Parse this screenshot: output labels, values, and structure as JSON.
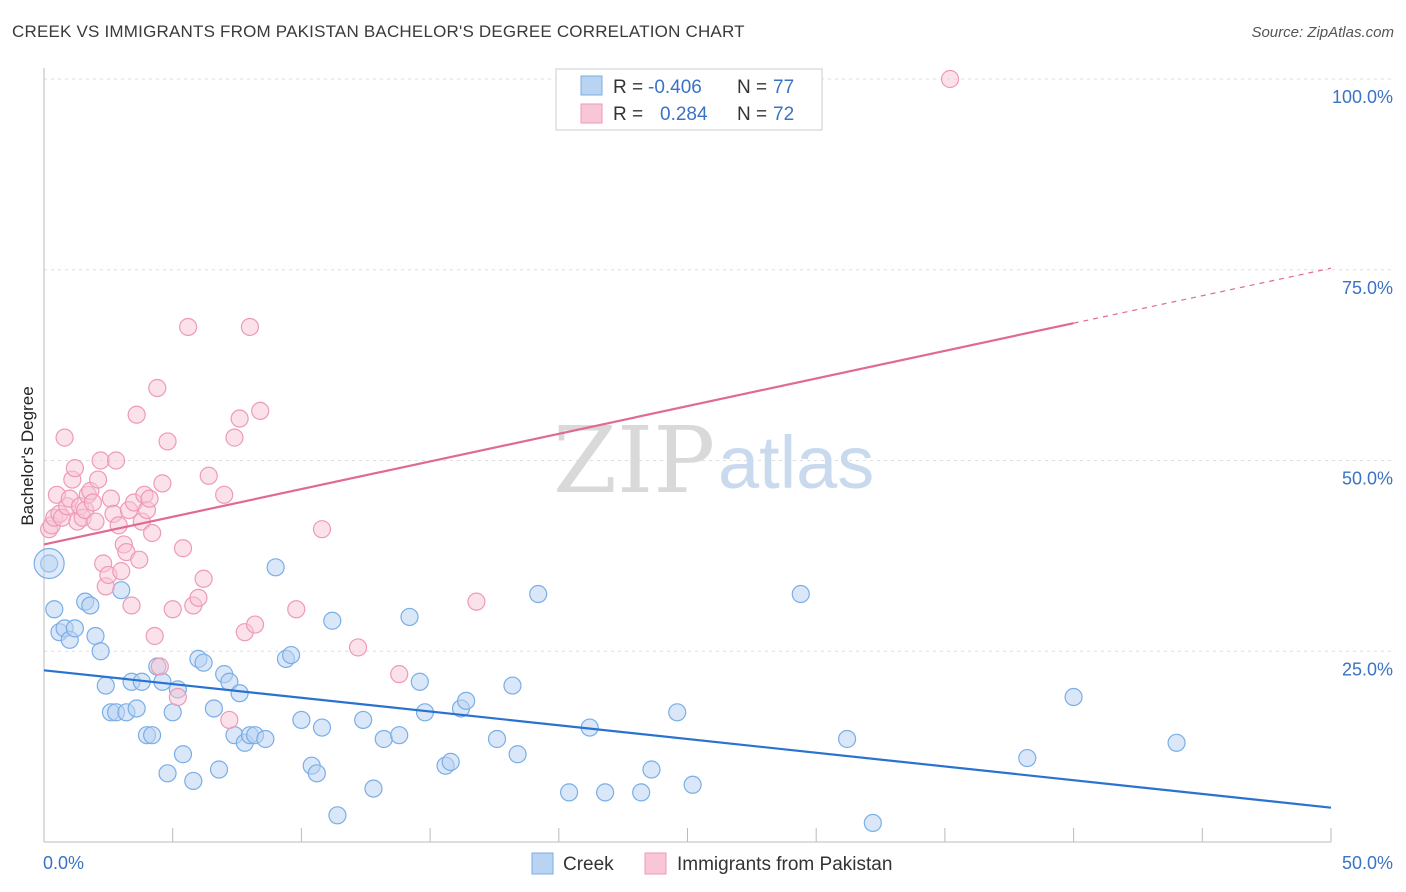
{
  "chart_data": {
    "type": "scatter",
    "title": "CREEK VS IMMIGRANTS FROM PAKISTAN BACHELOR'S DEGREE CORRELATION CHART",
    "source": "Source: ZipAtlas.com",
    "xlabel": "",
    "ylabel": "Bachelor's Degree",
    "xlim": [
      0,
      50
    ],
    "ylim": [
      0,
      100
    ],
    "x_tick_labels": {
      "min": "0.0%",
      "max": "50.0%"
    },
    "y_tick_labels": [
      "25.0%",
      "50.0%",
      "75.0%",
      "100.0%"
    ],
    "y_tick_values": [
      25,
      50,
      75,
      100
    ],
    "grid": true,
    "watermark": {
      "zip": "ZIP",
      "atlas": "atlas"
    },
    "legend": {
      "rows": [
        {
          "r_label": "R =",
          "r_value": "-0.406",
          "n_label": "N =",
          "n_value": "77"
        },
        {
          "r_label": "R =",
          "r_value": "0.284",
          "n_label": "N =",
          "n_value": "72"
        }
      ]
    },
    "series": [
      {
        "name": "Creek",
        "color": "#7aaee6",
        "fill": "#b9d3f3",
        "line_color": "#2a72d0",
        "trend": {
          "x0": 0,
          "y0": 22.5,
          "x1": 50,
          "y1": 4.5
        },
        "points": [
          [
            0.2,
            36.5
          ],
          [
            0.4,
            30.5
          ],
          [
            0.6,
            27.5
          ],
          [
            0.8,
            28
          ],
          [
            1.0,
            26.5
          ],
          [
            1.2,
            28
          ],
          [
            1.6,
            31.5
          ],
          [
            1.8,
            31
          ],
          [
            2.0,
            27
          ],
          [
            2.2,
            25
          ],
          [
            2.4,
            20.5
          ],
          [
            2.6,
            17
          ],
          [
            2.8,
            17
          ],
          [
            3.0,
            33
          ],
          [
            3.2,
            17
          ],
          [
            3.4,
            21
          ],
          [
            3.6,
            17.5
          ],
          [
            3.8,
            21
          ],
          [
            4.0,
            14
          ],
          [
            4.2,
            14
          ],
          [
            4.4,
            23
          ],
          [
            4.6,
            21
          ],
          [
            4.8,
            9
          ],
          [
            5.0,
            17
          ],
          [
            5.2,
            20
          ],
          [
            5.4,
            11.5
          ],
          [
            5.8,
            8
          ],
          [
            6.0,
            24
          ],
          [
            6.2,
            23.5
          ],
          [
            6.6,
            17.5
          ],
          [
            6.8,
            9.5
          ],
          [
            7.0,
            22
          ],
          [
            7.2,
            21
          ],
          [
            7.4,
            14
          ],
          [
            7.6,
            19.5
          ],
          [
            7.8,
            13
          ],
          [
            8.0,
            14
          ],
          [
            8.2,
            14
          ],
          [
            8.6,
            13.5
          ],
          [
            9.0,
            36
          ],
          [
            9.4,
            24
          ],
          [
            9.6,
            24.5
          ],
          [
            10.0,
            16
          ],
          [
            10.4,
            10
          ],
          [
            10.6,
            9
          ],
          [
            10.8,
            15
          ],
          [
            11.2,
            29
          ],
          [
            11.4,
            3.5
          ],
          [
            12.4,
            16
          ],
          [
            12.8,
            7
          ],
          [
            13.2,
            13.5
          ],
          [
            13.8,
            14
          ],
          [
            14.2,
            29.5
          ],
          [
            14.6,
            21
          ],
          [
            14.8,
            17
          ],
          [
            15.6,
            10
          ],
          [
            15.8,
            10.5
          ],
          [
            16.2,
            17.5
          ],
          [
            16.4,
            18.5
          ],
          [
            17.6,
            13.5
          ],
          [
            18.2,
            20.5
          ],
          [
            18.4,
            11.5
          ],
          [
            19.2,
            32.5
          ],
          [
            20.4,
            6.5
          ],
          [
            21.2,
            15
          ],
          [
            21.8,
            6.5
          ],
          [
            23.2,
            6.5
          ],
          [
            23.6,
            9.5
          ],
          [
            24.6,
            17
          ],
          [
            25.2,
            7.5
          ],
          [
            29.4,
            32.5
          ],
          [
            31.2,
            13.5
          ],
          [
            32.2,
            2.5
          ],
          [
            38.2,
            11
          ],
          [
            40.0,
            19
          ],
          [
            44.0,
            13
          ]
        ]
      },
      {
        "name": "Immigrants from Pakistan",
        "color": "#ef9ab5",
        "fill": "#f8c6d6",
        "line_color": "#e06a92",
        "trend": {
          "x0": 0,
          "y0": 39,
          "x1": 40,
          "y1": 68
        },
        "trend_dash": {
          "x0": 40,
          "y0": 68,
          "x1": 50,
          "y1": 75.2
        },
        "points": [
          [
            0.2,
            41
          ],
          [
            0.3,
            41.5
          ],
          [
            0.4,
            42.5
          ],
          [
            0.5,
            45.5
          ],
          [
            0.6,
            43
          ],
          [
            0.7,
            42.5
          ],
          [
            0.8,
            53
          ],
          [
            0.9,
            44
          ],
          [
            1.0,
            45
          ],
          [
            1.1,
            47.5
          ],
          [
            1.2,
            49
          ],
          [
            1.3,
            42
          ],
          [
            1.4,
            44
          ],
          [
            1.5,
            42.5
          ],
          [
            1.6,
            43.5
          ],
          [
            1.7,
            45.5
          ],
          [
            1.8,
            46
          ],
          [
            1.9,
            44.5
          ],
          [
            2.0,
            42
          ],
          [
            2.1,
            47.5
          ],
          [
            2.2,
            50
          ],
          [
            2.3,
            36.5
          ],
          [
            2.4,
            33.5
          ],
          [
            2.5,
            35
          ],
          [
            2.6,
            45
          ],
          [
            2.7,
            43
          ],
          [
            2.8,
            50
          ],
          [
            2.9,
            41.5
          ],
          [
            3.0,
            35.5
          ],
          [
            3.1,
            39
          ],
          [
            3.2,
            38
          ],
          [
            3.3,
            43.5
          ],
          [
            3.4,
            31
          ],
          [
            3.5,
            44.5
          ],
          [
            3.6,
            56
          ],
          [
            3.7,
            37
          ],
          [
            3.8,
            42
          ],
          [
            3.9,
            45.5
          ],
          [
            4.0,
            43.5
          ],
          [
            4.1,
            45
          ],
          [
            4.2,
            40.5
          ],
          [
            4.3,
            27
          ],
          [
            4.4,
            59.5
          ],
          [
            4.5,
            23
          ],
          [
            4.6,
            47
          ],
          [
            4.8,
            52.5
          ],
          [
            5.0,
            30.5
          ],
          [
            5.2,
            19
          ],
          [
            5.4,
            38.5
          ],
          [
            5.6,
            67.5
          ],
          [
            5.8,
            31
          ],
          [
            6.0,
            32
          ],
          [
            6.2,
            34.5
          ],
          [
            6.4,
            48
          ],
          [
            7.0,
            45.5
          ],
          [
            7.2,
            16
          ],
          [
            7.4,
            53
          ],
          [
            7.6,
            55.5
          ],
          [
            7.8,
            27.5
          ],
          [
            8.0,
            67.5
          ],
          [
            8.2,
            28.5
          ],
          [
            8.4,
            56.5
          ],
          [
            9.8,
            30.5
          ],
          [
            10.8,
            41
          ],
          [
            12.2,
            25.5
          ],
          [
            13.8,
            22
          ],
          [
            16.8,
            31.5
          ],
          [
            35.2,
            100
          ]
        ]
      }
    ],
    "bottom_legend": [
      "Creek",
      "Immigrants from Pakistan"
    ]
  }
}
